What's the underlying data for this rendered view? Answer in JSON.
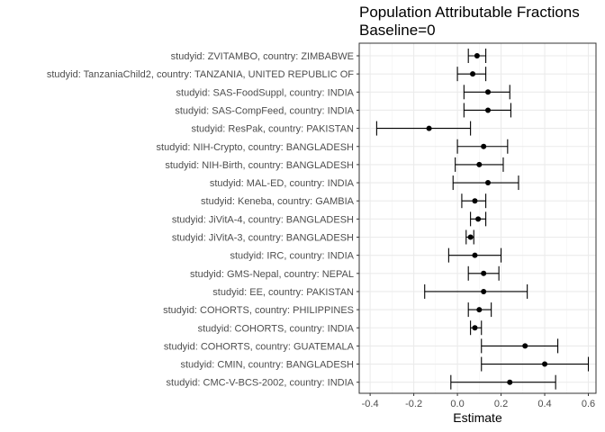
{
  "chart_data": {
    "type": "forest-plot",
    "title": "Population Attributable Fractions",
    "subtitle": "Baseline=0",
    "xlabel": "Estimate",
    "ylabel": "",
    "xlim": [
      -0.4,
      0.6
    ],
    "xticks": [
      -0.4,
      -0.2,
      0.0,
      0.2,
      0.4,
      0.6
    ],
    "xtick_labels": [
      "-0.4",
      "-0.2",
      "0.0",
      "0.2",
      "0.4",
      "0.6"
    ],
    "grid": true,
    "rows": [
      {
        "label": "studyid: ZVITAMBO, country: ZIMBABWE",
        "estimate": 0.09,
        "lower": 0.05,
        "upper": 0.13
      },
      {
        "label": "studyid: TanzaniaChild2, country: TANZANIA, UNITED REPUBLIC OF",
        "estimate": 0.07,
        "lower": 0.0,
        "upper": 0.13
      },
      {
        "label": "studyid: SAS-FoodSuppl, country: INDIA",
        "estimate": 0.14,
        "lower": 0.03,
        "upper": 0.24
      },
      {
        "label": "studyid: SAS-CompFeed, country: INDIA",
        "estimate": 0.14,
        "lower": 0.03,
        "upper": 0.245
      },
      {
        "label": "studyid: ResPak, country: PAKISTAN",
        "estimate": -0.13,
        "lower": -0.37,
        "upper": 0.06
      },
      {
        "label": "studyid: NIH-Crypto, country: BANGLADESH",
        "estimate": 0.12,
        "lower": 0.0,
        "upper": 0.23
      },
      {
        "label": "studyid: NIH-Birth, country: BANGLADESH",
        "estimate": 0.1,
        "lower": -0.01,
        "upper": 0.21
      },
      {
        "label": "studyid: MAL-ED, country: INDIA",
        "estimate": 0.14,
        "lower": -0.02,
        "upper": 0.28
      },
      {
        "label": "studyid: Keneba, country: GAMBIA",
        "estimate": 0.08,
        "lower": 0.02,
        "upper": 0.13
      },
      {
        "label": "studyid: JiVitA-4, country: BANGLADESH",
        "estimate": 0.095,
        "lower": 0.06,
        "upper": 0.13
      },
      {
        "label": "studyid: JiVitA-3, country: BANGLADESH",
        "estimate": 0.06,
        "lower": 0.04,
        "upper": 0.075
      },
      {
        "label": "studyid: IRC, country: INDIA",
        "estimate": 0.08,
        "lower": -0.04,
        "upper": 0.2
      },
      {
        "label": "studyid: GMS-Nepal, country: NEPAL",
        "estimate": 0.12,
        "lower": 0.05,
        "upper": 0.19
      },
      {
        "label": "studyid: EE, country: PAKISTAN",
        "estimate": 0.12,
        "lower": -0.15,
        "upper": 0.32
      },
      {
        "label": "studyid: COHORTS, country: PHILIPPINES",
        "estimate": 0.1,
        "lower": 0.05,
        "upper": 0.155
      },
      {
        "label": "studyid: COHORTS, country: INDIA",
        "estimate": 0.08,
        "lower": 0.06,
        "upper": 0.11
      },
      {
        "label": "studyid: COHORTS, country: GUATEMALA",
        "estimate": 0.31,
        "lower": 0.11,
        "upper": 0.46
      },
      {
        "label": "studyid: CMIN, country: BANGLADESH",
        "estimate": 0.4,
        "lower": 0.11,
        "upper": 0.6
      },
      {
        "label": "studyid: CMC-V-BCS-2002, country: INDIA",
        "estimate": 0.24,
        "lower": -0.03,
        "upper": 0.45
      }
    ]
  }
}
